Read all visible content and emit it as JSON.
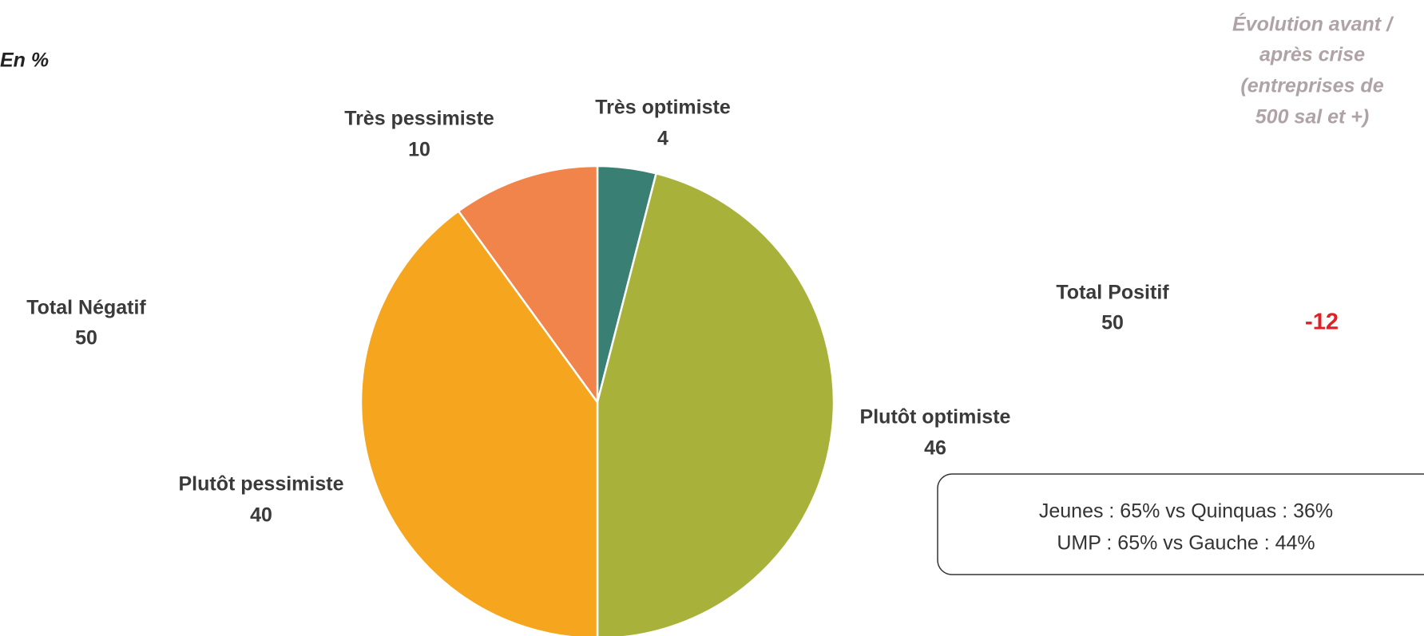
{
  "chart_data": {
    "type": "pie",
    "unit_label": "En %",
    "categories": [
      "Très optimiste",
      "Plutôt optimiste",
      "Plutôt pessimiste",
      "Très pessimiste"
    ],
    "values": [
      4,
      46,
      40,
      10
    ],
    "colors": [
      "#3a7f74",
      "#a8b23a",
      "#f5a61e",
      "#f0844a"
    ],
    "total_negative": {
      "label": "Total Négatif",
      "value": 50,
      "color": "#f0844a"
    },
    "total_positive": {
      "label": "Total Positif",
      "value": 50,
      "color": "#3a7f74"
    },
    "evolution": {
      "title": [
        "Évolution avant /",
        "après crise",
        "(entreprises de",
        "500 sal et +)"
      ],
      "value": -12
    },
    "note": [
      "Jeunes : 65% vs Quinquas : 36%",
      "UMP : 65%  vs Gauche : 44%"
    ]
  }
}
